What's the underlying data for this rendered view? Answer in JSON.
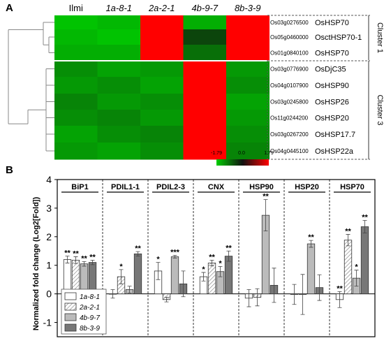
{
  "panel_a": {
    "label": "A",
    "columns": [
      "Ilmi",
      "1a-8-1",
      "2a-2-1",
      "4b-9-7",
      "8b-3-9"
    ],
    "rows": [
      {
        "locus": "Os03g0276500",
        "gene": "OsHSP70",
        "values": [
          -1.7,
          -1.6,
          1.79,
          -1.5,
          1.79
        ]
      },
      {
        "locus": "Os05g0460000",
        "gene": "OsctHSP70-1",
        "values": [
          -1.6,
          -1.7,
          1.79,
          -0.5,
          1.79
        ]
      },
      {
        "locus": "Os01g0840100",
        "gene": "OsHSP70",
        "values": [
          -1.5,
          -1.5,
          1.79,
          -0.9,
          1.79
        ]
      },
      {
        "locus": "Os03g0776900",
        "gene": "OsDjC35",
        "values": [
          -1.2,
          -1.4,
          -1.3,
          1.79,
          -1.3
        ]
      },
      {
        "locus": "Os04g0107900",
        "gene": "OsHSP90",
        "values": [
          -1.3,
          -1.2,
          -1.4,
          1.79,
          -1.2
        ]
      },
      {
        "locus": "Os03g0245800",
        "gene": "OsHSP26",
        "values": [
          -1.1,
          -1.3,
          -1.2,
          1.79,
          -1.4
        ]
      },
      {
        "locus": "Os11g0244200",
        "gene": "OsHSP20",
        "values": [
          -1.2,
          -1.1,
          -1.3,
          1.79,
          -1.3
        ]
      },
      {
        "locus": "Os03g0267200",
        "gene": "OsHSP17.7",
        "values": [
          -1.4,
          -1.2,
          -1.1,
          1.79,
          -1.2
        ]
      },
      {
        "locus": "Os04g0445100",
        "gene": "OsHSP22a",
        "values": [
          -1.3,
          -1.4,
          -1.2,
          1.79,
          -1.1
        ]
      }
    ],
    "clusters": [
      {
        "label": "Cluster 1",
        "rows": [
          0,
          2
        ]
      },
      {
        "label": "Cluster 3",
        "rows": [
          3,
          8
        ]
      }
    ],
    "scale_ticks": [
      "-1.79",
      "0.0",
      "1.79"
    ],
    "colors": {
      "low": "#00cc00",
      "mid": "#111111",
      "high": "#ff0000"
    }
  },
  "chart_data": {
    "type": "bar",
    "panel_label": "B",
    "ylabel": "Normalized fold change (Log2[Fold])",
    "ylim": [
      -1.5,
      4
    ],
    "yticks": [
      "-1",
      "0",
      "1",
      "2",
      "3",
      "4"
    ],
    "categories": [
      "BiP1",
      "PDIL1-1",
      "PDIL2-3",
      "CNX",
      "HSP90",
      "HSP20",
      "HSP70"
    ],
    "series": [
      {
        "name": "1a-8-1",
        "color": "#ffffff",
        "pattern": "none",
        "values": [
          1.2,
          0.0,
          0.8,
          0.6,
          -0.15,
          -0.02,
          -0.2
        ],
        "errors": [
          0.12,
          0.15,
          0.3,
          0.15,
          0.3,
          0.35,
          0.28
        ],
        "sig": [
          "**",
          "",
          "*",
          "*",
          "",
          "",
          "**"
        ]
      },
      {
        "name": "2a-2-1",
        "color": "#ffffff",
        "pattern": "hatch",
        "values": [
          1.18,
          0.6,
          -0.2,
          1.08,
          -0.12,
          -0.02,
          1.88
        ],
        "errors": [
          0.12,
          0.25,
          0.08,
          0.1,
          0.3,
          0.7,
          0.2
        ],
        "sig": [
          "**",
          "*",
          "",
          "**",
          "",
          "",
          "**"
        ]
      },
      {
        "name": "4b-9-7",
        "color": "#bbbbbb",
        "pattern": "none",
        "values": [
          1.05,
          0.15,
          1.3,
          0.78,
          2.75,
          1.75,
          0.55
        ],
        "errors": [
          0.08,
          0.12,
          0.05,
          0.18,
          0.55,
          0.12,
          0.28
        ],
        "sig": [
          "**",
          "",
          "***",
          "*",
          "**",
          "**",
          "*"
        ]
      },
      {
        "name": "8b-3-9",
        "color": "#777777",
        "pattern": "none",
        "values": [
          1.1,
          1.4,
          0.35,
          1.32,
          0.3,
          0.22,
          2.35
        ],
        "errors": [
          0.08,
          0.08,
          0.45,
          0.18,
          0.6,
          0.45,
          0.22
        ],
        "sig": [
          "**",
          "**",
          "",
          "**",
          "",
          "",
          "**"
        ]
      }
    ],
    "legend": "bottom-left",
    "grid": false
  }
}
